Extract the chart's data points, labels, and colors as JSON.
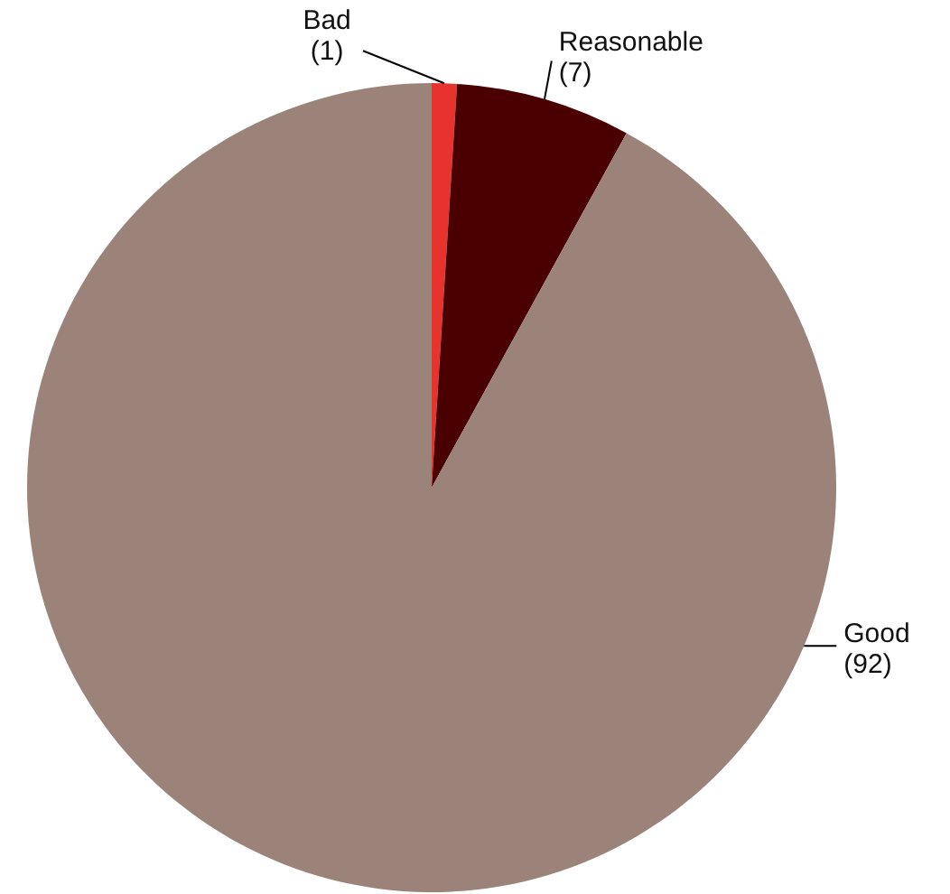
{
  "chart_data": {
    "type": "pie",
    "categories": [
      "Bad",
      "Reasonable",
      "Good"
    ],
    "values": [
      1,
      7,
      92
    ],
    "value_labels": [
      "(1)",
      "(7)",
      "(92)"
    ],
    "colors": [
      "#e8322e",
      "#4a0000",
      "#9b837a"
    ]
  }
}
